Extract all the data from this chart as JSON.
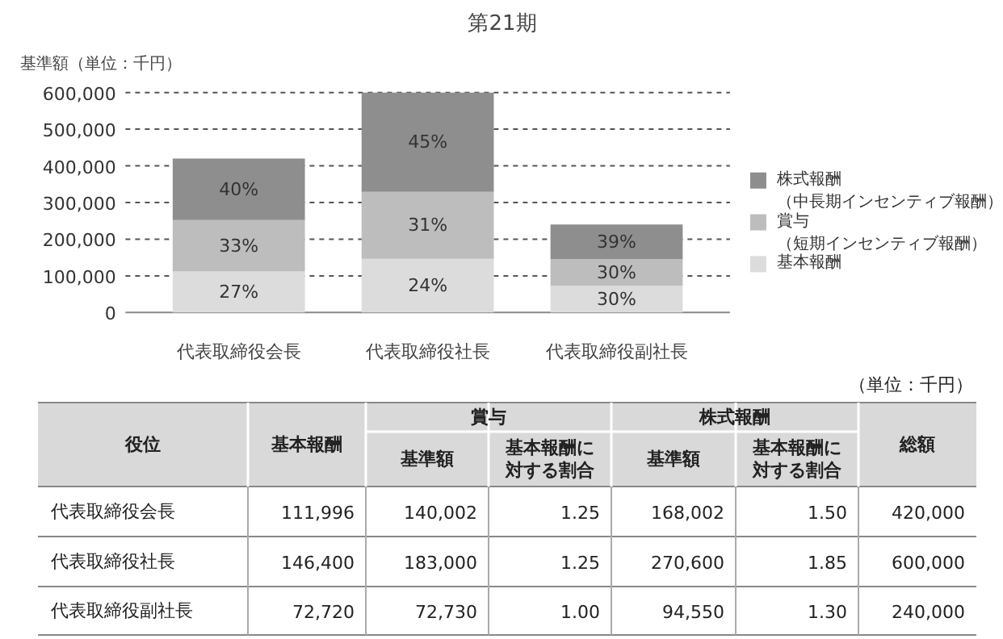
{
  "chart_data": [
    {
      "type": "bar",
      "title": "第21期",
      "ylabel": "基準額（単位：千円）",
      "categories": [
        "代表取締役会長",
        "代表取締役社長",
        "代表取締役副社長"
      ],
      "stacked": true,
      "series": [
        {
          "name": "基本報酬",
          "color": "#dcdcdc",
          "values": [
            111996,
            146400,
            72720
          ]
        },
        {
          "name": "賞与（短期インセンティブ報酬）",
          "color": "#bdbdbd",
          "values": [
            140002,
            183000,
            72730
          ]
        },
        {
          "name": "株式報酬（中長期インセンティブ報酬）",
          "color": "#8e8e8e",
          "values": [
            168002,
            270600,
            94550
          ]
        }
      ],
      "annotations": [
        "27%",
        "33%",
        "40%",
        "24%",
        "31%",
        "45%",
        "30%",
        "30%",
        "39%"
      ],
      "ylim": [
        0,
        600000
      ],
      "yticks": [
        0,
        {
          "value": 100000,
          "label": "100,000"
        },
        {
          "value": 200000,
          "label": "200,000"
        },
        {
          "value": 300000,
          "label": "300,000"
        },
        {
          "value": 400000,
          "label": "400,000"
        },
        {
          "value": 500000,
          "label": "500,000"
        },
        {
          "value": 600000,
          "label": "600,000"
        }
      ],
      "grid": "y",
      "legend": "right"
    },
    {
      "type": "other",
      "annotations": [
        "（単位：千円）",
        "役位",
        "基本報酬",
        "賞与",
        "株式報酬",
        "総額",
        "基準額",
        "基本報酬に対する割合",
        "基準額",
        "基本報酬に対する割合",
        "代表取締役会長",
        "111,996",
        "140,002",
        "1.25",
        "168,002",
        "1.50",
        "420,000",
        "代表取締役社長",
        "146,400",
        "183,000",
        "1.25",
        "270,600",
        "1.85",
        "600,000",
        "代表取締役副社長",
        "72,720",
        "72,730",
        "1.00",
        "94,550",
        "1.30",
        "240,000"
      ]
    }
  ]
}
